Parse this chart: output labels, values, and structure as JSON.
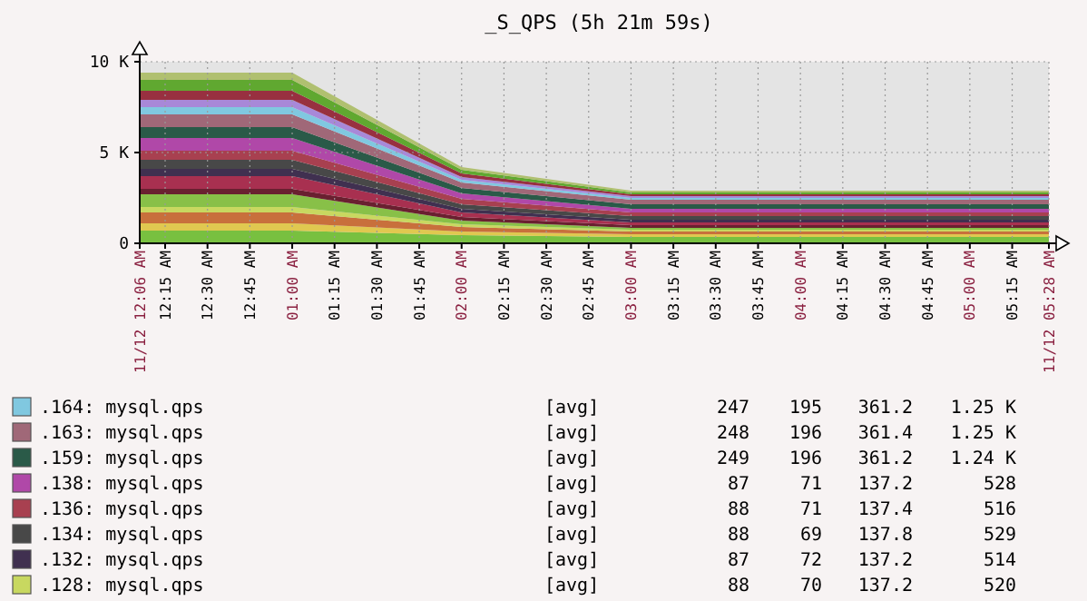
{
  "chart_data": {
    "type": "area",
    "stacked": true,
    "title": "_S_QPS (5h 21m 59s)",
    "x": [
      0.1,
      1.0,
      2.0,
      3.0,
      5.4667
    ],
    "xlim": [
      0.1,
      5.4667
    ],
    "xticks": [
      {
        "value": 0.1,
        "label": "11/12 12:06 AM"
      },
      {
        "value": 0.25,
        "label": "12:15 AM"
      },
      {
        "value": 0.5,
        "label": "12:30 AM"
      },
      {
        "value": 0.75,
        "label": "12:45 AM"
      },
      {
        "value": 1,
        "label": "01:00 AM"
      },
      {
        "value": 1.25,
        "label": "01:15 AM"
      },
      {
        "value": 1.5,
        "label": "01:30 AM"
      },
      {
        "value": 1.75,
        "label": "01:45 AM"
      },
      {
        "value": 2,
        "label": "02:00 AM"
      },
      {
        "value": 2.25,
        "label": "02:15 AM"
      },
      {
        "value": 2.5,
        "label": "02:30 AM"
      },
      {
        "value": 2.75,
        "label": "02:45 AM"
      },
      {
        "value": 3,
        "label": "03:00 AM"
      },
      {
        "value": 3.25,
        "label": "03:15 AM"
      },
      {
        "value": 3.5,
        "label": "03:30 AM"
      },
      {
        "value": 3.75,
        "label": "03:45 AM"
      },
      {
        "value": 4,
        "label": "04:00 AM"
      },
      {
        "value": 4.25,
        "label": "04:15 AM"
      },
      {
        "value": 4.5,
        "label": "04:30 AM"
      },
      {
        "value": 4.75,
        "label": "04:45 AM"
      },
      {
        "value": 5,
        "label": "05:00 AM"
      },
      {
        "value": 5.25,
        "label": "05:15 AM"
      },
      {
        "value": 5.4667,
        "label": "11/12 05:28 AM"
      }
    ],
    "ylim": [
      0,
      10000
    ],
    "yticks": [
      {
        "value": 0,
        "label": "0"
      },
      {
        "value": 5000,
        "label": "5 K"
      },
      {
        "value": 10000,
        "label": "10 K"
      }
    ],
    "grid": true,
    "legend": "bottom",
    "series": [
      {
        "color": "#78c040",
        "values": [
          700,
          700,
          450,
          350,
          350
        ]
      },
      {
        "color": "#e0c850",
        "values": [
          400,
          400,
          200,
          150,
          150
        ]
      },
      {
        "color": "#c8703c",
        "values": [
          600,
          600,
          250,
          150,
          150
        ]
      },
      {
        "name": ".128: mysql.qps",
        "color": "#c8d860",
        "values": [
          300,
          300,
          150,
          100,
          100
        ]
      },
      {
        "color": "#88c048",
        "values": [
          700,
          700,
          200,
          100,
          100
        ]
      },
      {
        "color": "#6a2030",
        "values": [
          300,
          300,
          200,
          150,
          150
        ]
      },
      {
        "color": "#a83050",
        "values": [
          700,
          700,
          250,
          150,
          150
        ]
      },
      {
        "name": ".132: mysql.qps",
        "color": "#403050",
        "values": [
          400,
          400,
          200,
          150,
          150
        ]
      },
      {
        "name": ".134: mysql.qps",
        "color": "#484848",
        "values": [
          500,
          500,
          250,
          200,
          200
        ]
      },
      {
        "name": ".136: mysql.qps",
        "color": "#a84050",
        "values": [
          500,
          500,
          300,
          200,
          200
        ]
      },
      {
        "name": ".138: mysql.qps",
        "color": "#b048a8",
        "values": [
          700,
          700,
          300,
          200,
          200
        ]
      },
      {
        "name": ".159: mysql.qps",
        "color": "#2a5a48",
        "values": [
          600,
          600,
          300,
          250,
          250
        ]
      },
      {
        "name": ".163: mysql.qps",
        "color": "#a06878",
        "values": [
          700,
          700,
          300,
          250,
          250
        ]
      },
      {
        "name": ".164: mysql.qps",
        "color": "#80c8e0",
        "values": [
          400,
          400,
          150,
          100,
          100
        ]
      },
      {
        "color": "#a888d8",
        "values": [
          400,
          400,
          150,
          100,
          100
        ]
      },
      {
        "color": "#983040",
        "values": [
          500,
          500,
          200,
          100,
          100
        ]
      },
      {
        "color": "#60a830",
        "values": [
          600,
          600,
          200,
          100,
          100
        ]
      },
      {
        "color": "#b0c070",
        "values": [
          400,
          400,
          150,
          100,
          100
        ]
      }
    ],
    "annotations": [
      "[avg]\t247\t195\t361.2\t1.25 K",
      "[avg]\t248\t196\t361.4\t1.25 K",
      "[avg]\t249\t196\t361.2\t1.24 K",
      "[avg]\t87\t71\t137.2\t528",
      "[avg]\t88\t71\t137.4\t516",
      "[avg]\t88\t69\t137.8\t529",
      "[avg]\t87\t72\t137.2\t514",
      "[avg]\t88\t70\t137.2\t520"
    ]
  }
}
